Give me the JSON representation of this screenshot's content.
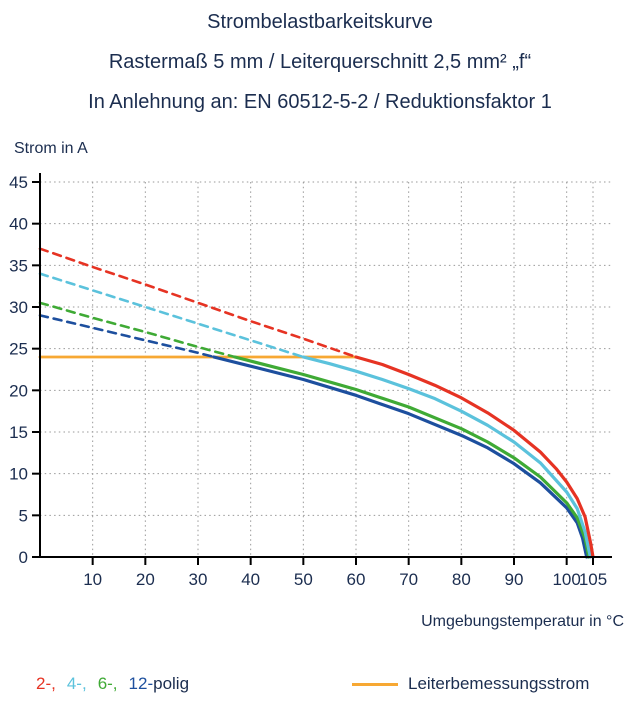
{
  "title": {
    "line1": "Strombelastbarkeitskurve",
    "line2": "Rastermaß 5 mm / Leiterquerschnitt 2,5 mm² „f“",
    "line3": "In Anlehnung an: EN 60512-5-2 / Reduktionsfaktor 1"
  },
  "ylabel": "Strom in A",
  "xlabel": "Umgebungstemperatur in °C",
  "legend": {
    "polig_items": [
      {
        "label": "2-,",
        "color": "#e63323"
      },
      {
        "label": "4-,",
        "color": "#5bc2dc"
      },
      {
        "label": "6-,",
        "color": "#3faa35"
      },
      {
        "label": "12-",
        "color": "#1d4f9e"
      }
    ],
    "polig_suffix": "polig",
    "rated": {
      "label": "Leiterbemessungsstrom",
      "color": "#f7a833"
    }
  },
  "chart_data": {
    "type": "line",
    "title": "Strombelastbarkeitskurve",
    "xlabel": "Umgebungstemperatur in °C",
    "ylabel": "Strom in A",
    "xlim": [
      0,
      107
    ],
    "ylim": [
      0,
      45
    ],
    "xticks": [
      10,
      20,
      30,
      40,
      50,
      60,
      70,
      80,
      90,
      100,
      105
    ],
    "yticks": [
      0,
      5,
      10,
      15,
      20,
      25,
      30,
      35,
      40,
      45
    ],
    "grid": true,
    "axis_color": "#000000",
    "grid_color": "#999999",
    "text_color": "#1b2d4f",
    "rated_line": {
      "name": "Leiterbemessungsstrom",
      "color": "#f7a833",
      "points": [
        [
          0,
          24
        ],
        [
          60,
          24
        ]
      ]
    },
    "series": [
      {
        "name": "2-polig",
        "color": "#e63323",
        "dashed": [
          [
            0,
            37
          ],
          [
            10,
            34.8
          ],
          [
            20,
            32.7
          ],
          [
            30,
            30.5
          ],
          [
            40,
            28.3
          ],
          [
            50,
            26.2
          ],
          [
            60,
            24
          ]
        ],
        "solid": [
          [
            60,
            24
          ],
          [
            65,
            23.1
          ],
          [
            70,
            21.9
          ],
          [
            75,
            20.6
          ],
          [
            80,
            19.1
          ],
          [
            85,
            17.3
          ],
          [
            90,
            15.2
          ],
          [
            95,
            12.6
          ],
          [
            98,
            10.6
          ],
          [
            100,
            9
          ],
          [
            102,
            7
          ],
          [
            103.5,
            4.8
          ],
          [
            104.6,
            1.5
          ],
          [
            105,
            0
          ]
        ]
      },
      {
        "name": "4-polig",
        "color": "#5bc2dc",
        "dashed": [
          [
            0,
            34
          ],
          [
            10,
            32
          ],
          [
            20,
            30
          ],
          [
            30,
            28
          ],
          [
            40,
            26
          ],
          [
            50,
            24
          ]
        ],
        "solid": [
          [
            50,
            24
          ],
          [
            55,
            23.2
          ],
          [
            60,
            22.3
          ],
          [
            65,
            21.3
          ],
          [
            70,
            20.2
          ],
          [
            75,
            19
          ],
          [
            80,
            17.5
          ],
          [
            85,
            15.8
          ],
          [
            90,
            13.8
          ],
          [
            95,
            11.3
          ],
          [
            100,
            7.8
          ],
          [
            102,
            5.8
          ],
          [
            103.5,
            3
          ],
          [
            104.5,
            0
          ]
        ]
      },
      {
        "name": "6-polig",
        "color": "#3faa35",
        "dashed": [
          [
            0,
            30.5
          ],
          [
            10,
            28.7
          ],
          [
            20,
            27
          ],
          [
            30,
            25.2
          ],
          [
            37,
            24
          ]
        ],
        "solid": [
          [
            37,
            24
          ],
          [
            45,
            22.7
          ],
          [
            50,
            21.9
          ],
          [
            60,
            20.1
          ],
          [
            70,
            18
          ],
          [
            80,
            15.4
          ],
          [
            85,
            13.8
          ],
          [
            90,
            11.9
          ],
          [
            95,
            9.6
          ],
          [
            100,
            6.5
          ],
          [
            102,
            4.7
          ],
          [
            103.5,
            2.2
          ],
          [
            104.2,
            0
          ]
        ]
      },
      {
        "name": "12-polig",
        "color": "#1d4f9e",
        "dashed": [
          [
            0,
            29
          ],
          [
            10,
            27.5
          ],
          [
            20,
            26
          ],
          [
            30,
            24.5
          ],
          [
            33,
            24
          ]
        ],
        "solid": [
          [
            33,
            24
          ],
          [
            40,
            22.9
          ],
          [
            50,
            21.3
          ],
          [
            60,
            19.4
          ],
          [
            70,
            17.2
          ],
          [
            80,
            14.6
          ],
          [
            85,
            13.1
          ],
          [
            90,
            11.2
          ],
          [
            95,
            8.9
          ],
          [
            100,
            5.9
          ],
          [
            102,
            4.1
          ],
          [
            103,
            2.3
          ],
          [
            103.8,
            0
          ]
        ]
      }
    ]
  }
}
